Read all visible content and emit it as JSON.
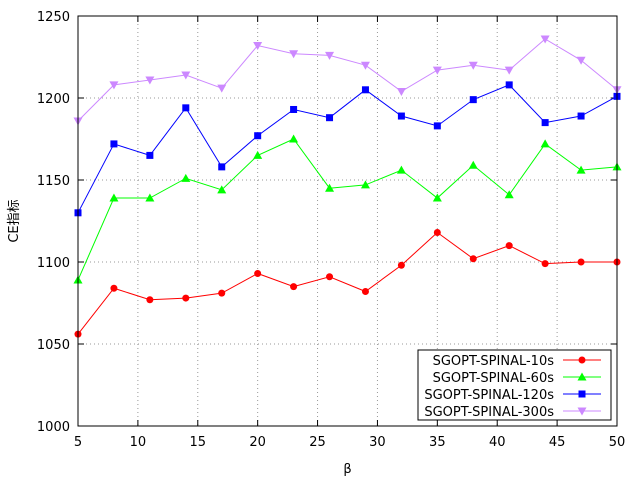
{
  "chart_data": {
    "type": "line",
    "title": "",
    "xlabel": "β",
    "ylabel": "CE指标",
    "xlim": [
      5,
      50
    ],
    "ylim": [
      1000,
      1250
    ],
    "xticks": [
      5,
      10,
      15,
      20,
      25,
      30,
      35,
      40,
      45,
      50
    ],
    "yticks": [
      1000,
      1050,
      1100,
      1150,
      1200,
      1250
    ],
    "grid": true,
    "legend_position": "bottom-right",
    "x": [
      5,
      8,
      11,
      14,
      17,
      20,
      23,
      26,
      29,
      32,
      35,
      38,
      41,
      44,
      47,
      50
    ],
    "series": [
      {
        "name": "SGOPT-SPINAL-10s",
        "color": "#ff0000",
        "marker": "circle",
        "values": [
          1056,
          1084,
          1077,
          1078,
          1081,
          1093,
          1085,
          1091,
          1082,
          1098,
          1118,
          1102,
          1110,
          1099,
          1100,
          1100
        ]
      },
      {
        "name": "SGOPT-SPINAL-60s",
        "color": "#00ff00",
        "marker": "triangle-up",
        "values": [
          1089,
          1139,
          1139,
          1151,
          1144,
          1165,
          1175,
          1145,
          1147,
          1156,
          1139,
          1159,
          1141,
          1172,
          1156,
          1158
        ]
      },
      {
        "name": "SGOPT-SPINAL-120s",
        "color": "#0000ff",
        "marker": "square",
        "values": [
          1130,
          1172,
          1165,
          1194,
          1158,
          1177,
          1193,
          1188,
          1205,
          1189,
          1183,
          1199,
          1208,
          1185,
          1189,
          1201
        ]
      },
      {
        "name": "SGOPT-SPINAL-300s",
        "color": "#cc88ff",
        "marker": "triangle-down",
        "values": [
          1186,
          1208,
          1211,
          1214,
          1206,
          1232,
          1227,
          1226,
          1220,
          1204,
          1217,
          1220,
          1217,
          1236,
          1223,
          1205
        ]
      }
    ]
  }
}
